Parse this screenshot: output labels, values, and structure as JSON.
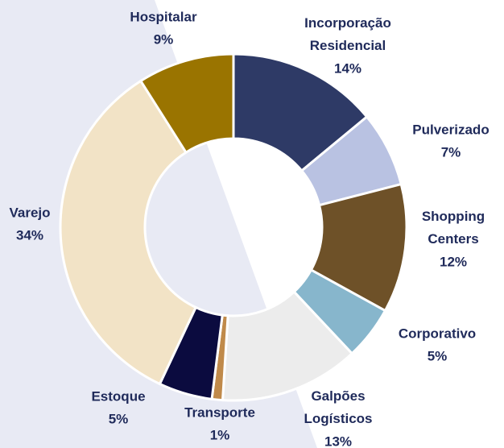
{
  "chart_data": {
    "type": "donut",
    "categories": [
      "Incorporação Residencial",
      "Pulverizado",
      "Shopping Centers",
      "Corporativo",
      "Galpões Logísticos",
      "Transporte",
      "Estoque",
      "Varejo",
      "Hospitalar"
    ],
    "values": [
      14,
      7,
      12,
      5,
      13,
      1,
      5,
      34,
      9
    ],
    "value_labels": [
      "14%",
      "7%",
      "12%",
      "5%",
      "13%",
      "1%",
      "5%",
      "34%",
      "9%"
    ],
    "colors": [
      "#2e3a66",
      "#b9c2e2",
      "#6e5128",
      "#87b6cc",
      "#ececec",
      "#c08a4a",
      "#0b0b3f",
      "#f2e3c6",
      "#9a7400"
    ]
  }
}
